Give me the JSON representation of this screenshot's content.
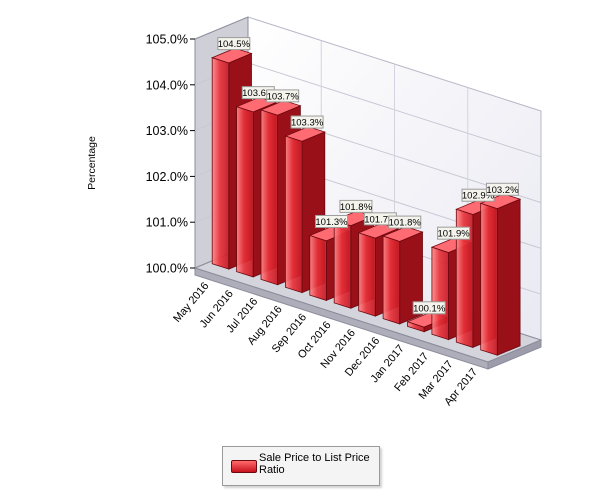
{
  "chart_data": {
    "type": "bar",
    "title": "",
    "xlabel": "",
    "ylabel": "Percentage",
    "ylim": [
      100,
      105
    ],
    "yticks": [
      "100.0%",
      "101.0%",
      "102.0%",
      "103.0%",
      "104.0%",
      "105.0%"
    ],
    "categories": [
      "May 2016",
      "Jun 2016",
      "Jul 2016",
      "Aug 2016",
      "Sep 2016",
      "Oct 2016",
      "Nov 2016",
      "Dec 2016",
      "Jan 2017",
      "Feb 2017",
      "Mar 2017",
      "Apr 2017"
    ],
    "series": [
      {
        "name": "Sale Price to List Price Ratio",
        "values": [
          104.5,
          103.6,
          103.7,
          103.3,
          101.3,
          101.8,
          101.7,
          101.8,
          100.1,
          101.9,
          102.9,
          103.2
        ],
        "labels": [
          "104.5%",
          "103.6%",
          "103.7%",
          "103.3%",
          "101.3%",
          "101.8%",
          "101.7%",
          "101.8%",
          "100.1%",
          "101.9%",
          "102.9%",
          "103.2%"
        ]
      }
    ],
    "grid": true,
    "legend": "bottom-center",
    "colors": {
      "bar": "#e8313a",
      "bar_dark": "#9a1018",
      "wall": "#f5f5fa",
      "floor": "#d4d4dc"
    }
  }
}
